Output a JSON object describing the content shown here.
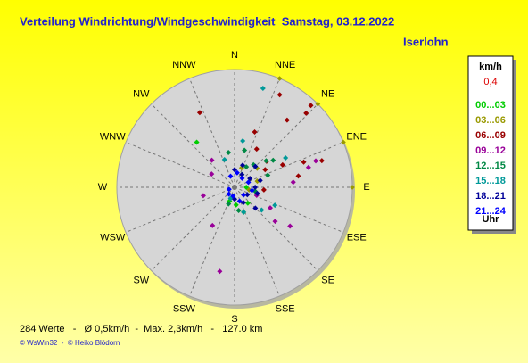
{
  "chart_data": {
    "type": "polar-scatter",
    "title": "Verteilung Windrichtung/Windgeschwindigkeit  Samstag, 03.12.2022",
    "subtitle": "Iserlohn",
    "directions": [
      "N",
      "NNE",
      "NE",
      "ENE",
      "E",
      "ESE",
      "SE",
      "SSE",
      "S",
      "SSW",
      "SW",
      "WSW",
      "W",
      "WNW",
      "NW",
      "NNW"
    ],
    "rlim": [
      0,
      0.4
    ],
    "rticks": [
      {
        "value": 0.4,
        "label": "0,4"
      }
    ],
    "legend_title": "km/h",
    "legend_footer": "Uhr",
    "series": [
      {
        "name": "00...03",
        "color": "#00cc00",
        "direction": [
          320,
          160,
          175,
          140,
          200,
          90,
          30
        ],
        "speed": [
          0.2,
          0.09,
          0.06,
          0.07,
          0.05,
          0.04,
          0.05
        ]
      },
      {
        "name": "03...06",
        "color": "#999900",
        "direction": [
          60,
          75,
          100,
          50,
          130,
          20
        ],
        "speed": [
          0.06,
          0.08,
          0.05,
          0.1,
          0.04,
          0.07
        ]
      },
      {
        "name": "06...09",
        "color": "#990000",
        "direction": [
          335,
          26,
          43,
          44,
          38,
          73,
          51,
          60,
          80,
          65,
          70,
          30,
          20,
          95
        ],
        "speed": [
          0.28,
          0.35,
          0.38,
          0.35,
          0.29,
          0.31,
          0.14,
          0.12,
          0.22,
          0.18,
          0.25,
          0.15,
          0.2,
          0.1
        ]
      },
      {
        "name": "09...12",
        "color": "#990099",
        "direction": [
          210,
          190,
          125,
          130,
          120,
          72,
          255,
          75,
          85,
          110,
          320,
          300
        ],
        "speed": [
          0.15,
          0.29,
          0.23,
          0.18,
          0.14,
          0.29,
          0.11,
          0.26,
          0.2,
          0.08,
          0.12,
          0.09
        ]
      },
      {
        "name": "12...15",
        "color": "#008844",
        "direction": [
          40,
          50,
          70,
          55,
          100,
          170,
          200,
          350,
          15,
          30
        ],
        "speed": [
          0.1,
          0.14,
          0.12,
          0.16,
          0.07,
          0.08,
          0.06,
          0.12,
          0.13,
          0.08
        ]
      },
      {
        "name": "15...18",
        "color": "#009999",
        "direction": [
          16,
          114,
          130,
          160,
          60,
          45,
          340,
          10,
          200
        ],
        "speed": [
          0.35,
          0.15,
          0.12,
          0.09,
          0.2,
          0.1,
          0.1,
          0.16,
          0.04
        ]
      },
      {
        "name": "18...21",
        "color": "#000099",
        "direction": [
          30,
          60,
          90,
          120,
          150,
          180,
          45,
          75,
          105,
          20,
          0,
          135
        ],
        "speed": [
          0.05,
          0.06,
          0.07,
          0.05,
          0.06,
          0.04,
          0.1,
          0.09,
          0.08,
          0.08,
          0.06,
          0.1
        ]
      },
      {
        "name": "21...24",
        "color": "#0000ff",
        "direction": [
          40,
          70,
          100,
          130,
          160,
          190,
          220,
          250,
          10,
          340
        ],
        "speed": [
          0.04,
          0.05,
          0.06,
          0.04,
          0.05,
          0.03,
          0.03,
          0.02,
          0.05,
          0.04
        ]
      }
    ],
    "summary": "284 Werte   -   Ø 0,5km/h  -  Max. 2,3km/h   -   127.0 km",
    "credit": "© WsWin32  -  © Heiko Blödorn"
  }
}
